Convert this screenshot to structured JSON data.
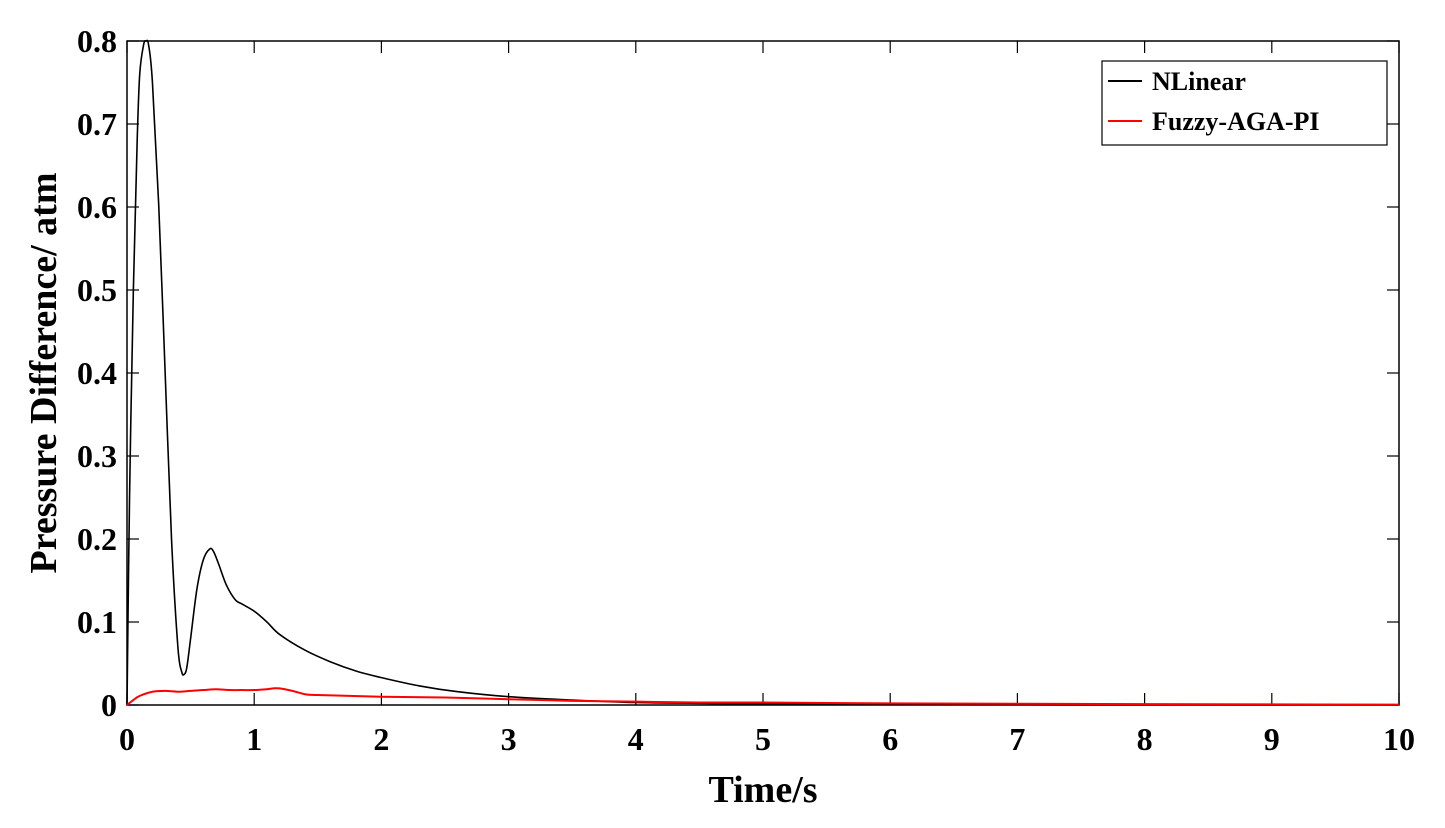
{
  "chart_data": {
    "type": "line",
    "title": "",
    "xlabel": "Time/s",
    "ylabel": "Pressure Difference/ atm",
    "xlim": [
      0,
      10
    ],
    "ylim": [
      0,
      0.8
    ],
    "xticks": [
      0,
      1,
      2,
      3,
      4,
      5,
      6,
      7,
      8,
      9,
      10
    ],
    "yticks": [
      0,
      0.1,
      0.2,
      0.3,
      0.4,
      0.5,
      0.6,
      0.7,
      0.8
    ],
    "xtick_labels": [
      "0",
      "1",
      "2",
      "3",
      "4",
      "5",
      "6",
      "7",
      "8",
      "9",
      "10"
    ],
    "ytick_labels": [
      "0",
      "0.1",
      "0.2",
      "0.3",
      "0.4",
      "0.5",
      "0.6",
      "0.7",
      "0.8"
    ],
    "grid": false,
    "legend_position": "top-right",
    "series": [
      {
        "name": "NLinear",
        "color": "#000000",
        "x": [
          0,
          0.02,
          0.05,
          0.08,
          0.1,
          0.13,
          0.15,
          0.17,
          0.2,
          0.25,
          0.3,
          0.35,
          0.4,
          0.43,
          0.45,
          0.47,
          0.5,
          0.55,
          0.6,
          0.65,
          0.68,
          0.72,
          0.78,
          0.85,
          0.9,
          1.0,
          1.1,
          1.2,
          1.4,
          1.6,
          1.8,
          2.0,
          2.3,
          2.6,
          3.0,
          3.5,
          4.0,
          4.5,
          5.0,
          6.0,
          7.0,
          8.0,
          9.0,
          10.0
        ],
        "y": [
          0.0,
          0.25,
          0.5,
          0.68,
          0.76,
          0.795,
          0.8,
          0.795,
          0.75,
          0.6,
          0.4,
          0.2,
          0.07,
          0.04,
          0.037,
          0.045,
          0.08,
          0.14,
          0.175,
          0.188,
          0.185,
          0.17,
          0.145,
          0.127,
          0.122,
          0.113,
          0.1,
          0.085,
          0.066,
          0.052,
          0.041,
          0.033,
          0.023,
          0.016,
          0.01,
          0.006,
          0.003,
          0.002,
          0.001,
          0.0005,
          0.0003,
          0.0002,
          0.0001,
          0.0001
        ]
      },
      {
        "name": "Fuzzy-AGA-PI",
        "color": "#ff0000",
        "x": [
          0,
          0.05,
          0.1,
          0.2,
          0.3,
          0.4,
          0.5,
          0.6,
          0.7,
          0.8,
          0.9,
          1.0,
          1.1,
          1.15,
          1.2,
          1.3,
          1.4,
          1.5,
          2.0,
          2.5,
          3.0,
          3.5,
          4.0,
          4.5,
          5.0,
          6.0,
          7.0,
          8.0,
          9.0,
          10.0
        ],
        "y": [
          0.0,
          0.006,
          0.011,
          0.016,
          0.017,
          0.016,
          0.017,
          0.018,
          0.019,
          0.018,
          0.018,
          0.018,
          0.019,
          0.02,
          0.02,
          0.017,
          0.013,
          0.012,
          0.01,
          0.009,
          0.007,
          0.005,
          0.004,
          0.003,
          0.003,
          0.002,
          0.0015,
          0.001,
          0.0007,
          0.0005
        ]
      }
    ]
  }
}
